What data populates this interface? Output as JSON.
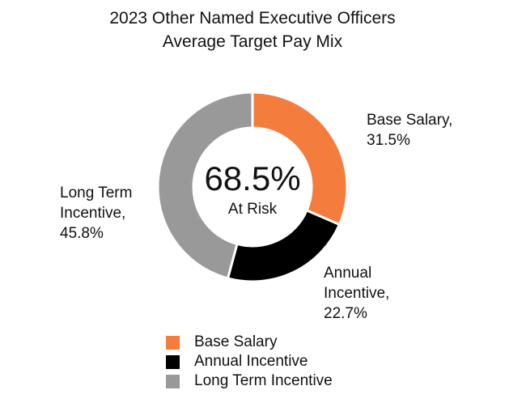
{
  "chart_data": {
    "type": "pie",
    "variant": "donut",
    "title": "2023 Other Named Executive Officers",
    "subtitle": "Average Target Pay Mix",
    "center_value": "68.5%",
    "center_label": "At Risk",
    "slices": [
      {
        "name": "Base Salary",
        "value": 31.5,
        "color": "#f47c3c",
        "label_line1": "Base Salary,",
        "label_line2": "31.5%"
      },
      {
        "name": "Annual Incentive",
        "value": 22.7,
        "color": "#000000",
        "label_line1": "Annual",
        "label_line2": "Incentive,",
        "label_line3": "22.7%"
      },
      {
        "name": "Long Term Incentive",
        "value": 45.8,
        "color": "#999999",
        "label_line1": "Long Term",
        "label_line2": "Incentive,",
        "label_line3": "45.8%"
      }
    ],
    "legend": [
      "Base Salary",
      "Annual Incentive",
      "Long Term Incentive"
    ],
    "legend_position": "bottom"
  }
}
